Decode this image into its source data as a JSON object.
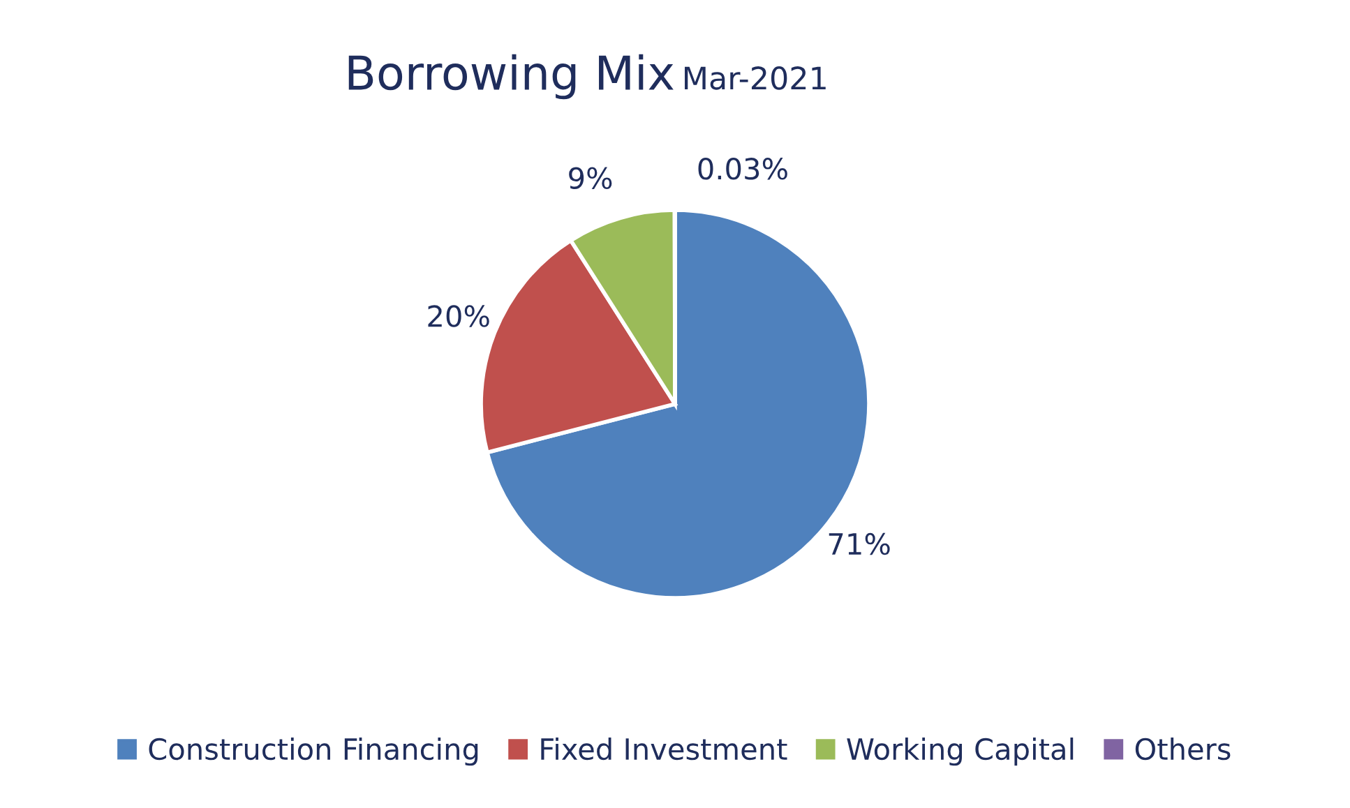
{
  "chart_data": {
    "type": "pie",
    "title": "Borrowing Mix",
    "subtitle": "Mar-2021",
    "categories": [
      "Construction Financing",
      "Fixed Investment",
      "Working Capital",
      "Others"
    ],
    "values": [
      71,
      20,
      9,
      0.03
    ],
    "colors": [
      "#4f81bd",
      "#c0504d",
      "#9bbb59",
      "#8064a2"
    ],
    "value_labels": [
      "71%",
      "20%",
      "9%",
      "0.03%"
    ],
    "legend": "bottom"
  }
}
